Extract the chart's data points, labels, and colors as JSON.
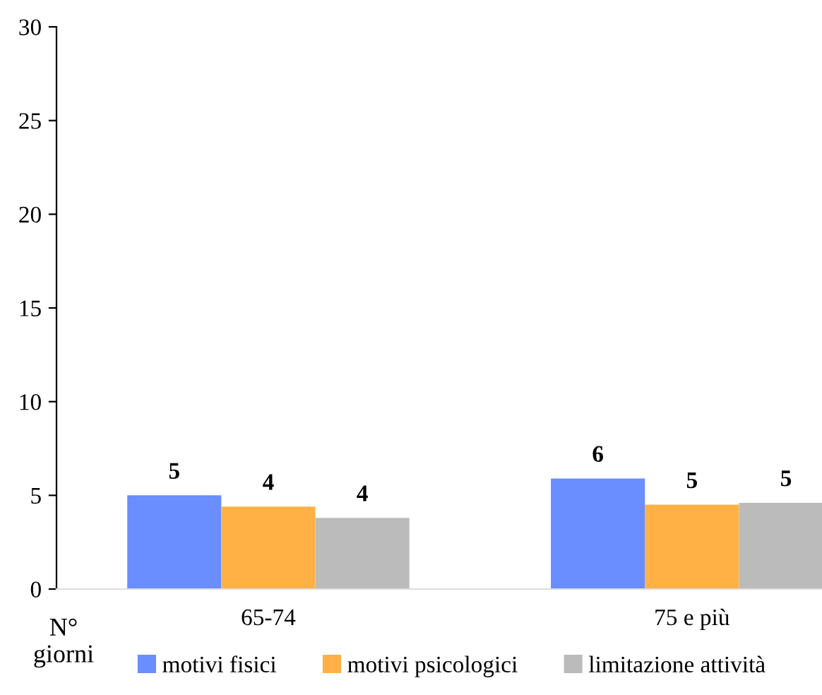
{
  "chart_data": {
    "type": "bar",
    "annotations": [
      "N° giorni"
    ],
    "categories": [
      "65-74",
      "75 e più"
    ],
    "series": [
      {
        "name": "motivi fisici",
        "color": "#6a8dff",
        "values": [
          5.0,
          5.9
        ],
        "value_labels": [
          "5",
          "6"
        ]
      },
      {
        "name": "motivi psicologici",
        "color": "#ffb145",
        "values": [
          4.4,
          4.5
        ],
        "value_labels": [
          "4",
          "5"
        ]
      },
      {
        "name": "limitazione attività",
        "color": "#bbbbbb",
        "values": [
          3.8,
          4.6
        ],
        "value_labels": [
          "4",
          "5"
        ]
      }
    ],
    "ylim": [
      0,
      30
    ],
    "yticks": [
      0,
      5,
      10,
      15,
      20,
      25,
      30
    ],
    "grid": false,
    "legend": "bottom"
  }
}
